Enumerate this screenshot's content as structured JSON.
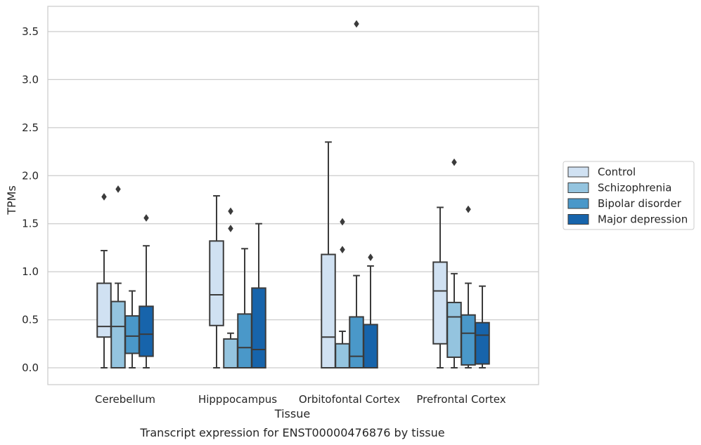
{
  "chart_data": {
    "type": "box",
    "title": "",
    "caption": "Transcript expression for ENST00000476876 by tissue",
    "xlabel": "Tissue",
    "ylabel": "TPMs",
    "ylim": [
      -0.17,
      3.77
    ],
    "yticks": [
      0.0,
      0.5,
      1.0,
      1.5,
      2.0,
      2.5,
      3.0,
      3.5
    ],
    "ytick_labels": [
      "0.0",
      "0.5",
      "1.0",
      "1.5",
      "2.0",
      "2.5",
      "3.0",
      "3.5"
    ],
    "grid": "horizontal",
    "legend_position": "right",
    "categories": [
      "Cerebellum",
      "Hipppocampus",
      "Orbitofontal Cortex",
      "Prefrontal Cortex"
    ],
    "series": [
      {
        "name": "Control",
        "color": "#d0e1f2",
        "boxes": [
          {
            "whisker_low": 0.0,
            "q1": 0.32,
            "median": 0.43,
            "q3": 0.88,
            "whisker_high": 1.22,
            "outliers": [
              1.78
            ]
          },
          {
            "whisker_low": 0.0,
            "q1": 0.44,
            "median": 0.76,
            "q3": 1.32,
            "whisker_high": 1.79,
            "outliers": []
          },
          {
            "whisker_low": 0.0,
            "q1": 0.0,
            "median": 0.32,
            "q3": 1.18,
            "whisker_high": 2.35,
            "outliers": []
          },
          {
            "whisker_low": 0.0,
            "q1": 0.25,
            "median": 0.8,
            "q3": 1.1,
            "whisker_high": 1.67,
            "outliers": []
          }
        ]
      },
      {
        "name": "Schizophrenia",
        "color": "#94c4df",
        "boxes": [
          {
            "whisker_low": 0.0,
            "q1": 0.0,
            "median": 0.43,
            "q3": 0.69,
            "whisker_high": 0.88,
            "outliers": [
              1.86
            ]
          },
          {
            "whisker_low": 0.0,
            "q1": 0.0,
            "median": 0.0,
            "q3": 0.3,
            "whisker_high": 0.36,
            "outliers": [
              1.45,
              1.63
            ]
          },
          {
            "whisker_low": 0.0,
            "q1": 0.0,
            "median": 0.0,
            "q3": 0.25,
            "whisker_high": 0.38,
            "outliers": [
              1.23,
              1.52
            ]
          },
          {
            "whisker_low": 0.0,
            "q1": 0.11,
            "median": 0.53,
            "q3": 0.68,
            "whisker_high": 0.98,
            "outliers": [
              2.14
            ]
          }
        ]
      },
      {
        "name": "Bipolar disorder",
        "color": "#4a98c9",
        "boxes": [
          {
            "whisker_low": 0.0,
            "q1": 0.15,
            "median": 0.33,
            "q3": 0.54,
            "whisker_high": 0.8,
            "outliers": []
          },
          {
            "whisker_low": 0.0,
            "q1": 0.0,
            "median": 0.21,
            "q3": 0.56,
            "whisker_high": 1.24,
            "outliers": []
          },
          {
            "whisker_low": 0.0,
            "q1": 0.0,
            "median": 0.12,
            "q3": 0.53,
            "whisker_high": 0.96,
            "outliers": [
              3.58
            ]
          },
          {
            "whisker_low": 0.0,
            "q1": 0.03,
            "median": 0.36,
            "q3": 0.55,
            "whisker_high": 0.88,
            "outliers": [
              1.65
            ]
          }
        ]
      },
      {
        "name": "Major depression",
        "color": "#1764ab",
        "boxes": [
          {
            "whisker_low": 0.0,
            "q1": 0.12,
            "median": 0.35,
            "q3": 0.64,
            "whisker_high": 1.27,
            "outliers": [
              1.56
            ]
          },
          {
            "whisker_low": 0.0,
            "q1": 0.0,
            "median": 0.19,
            "q3": 0.83,
            "whisker_high": 1.5,
            "outliers": []
          },
          {
            "whisker_low": 0.0,
            "q1": 0.0,
            "median": 0.0,
            "q3": 0.45,
            "whisker_high": 1.06,
            "outliers": [
              1.15
            ]
          },
          {
            "whisker_low": 0.0,
            "q1": 0.04,
            "median": 0.34,
            "q3": 0.47,
            "whisker_high": 0.85,
            "outliers": []
          }
        ]
      }
    ]
  }
}
